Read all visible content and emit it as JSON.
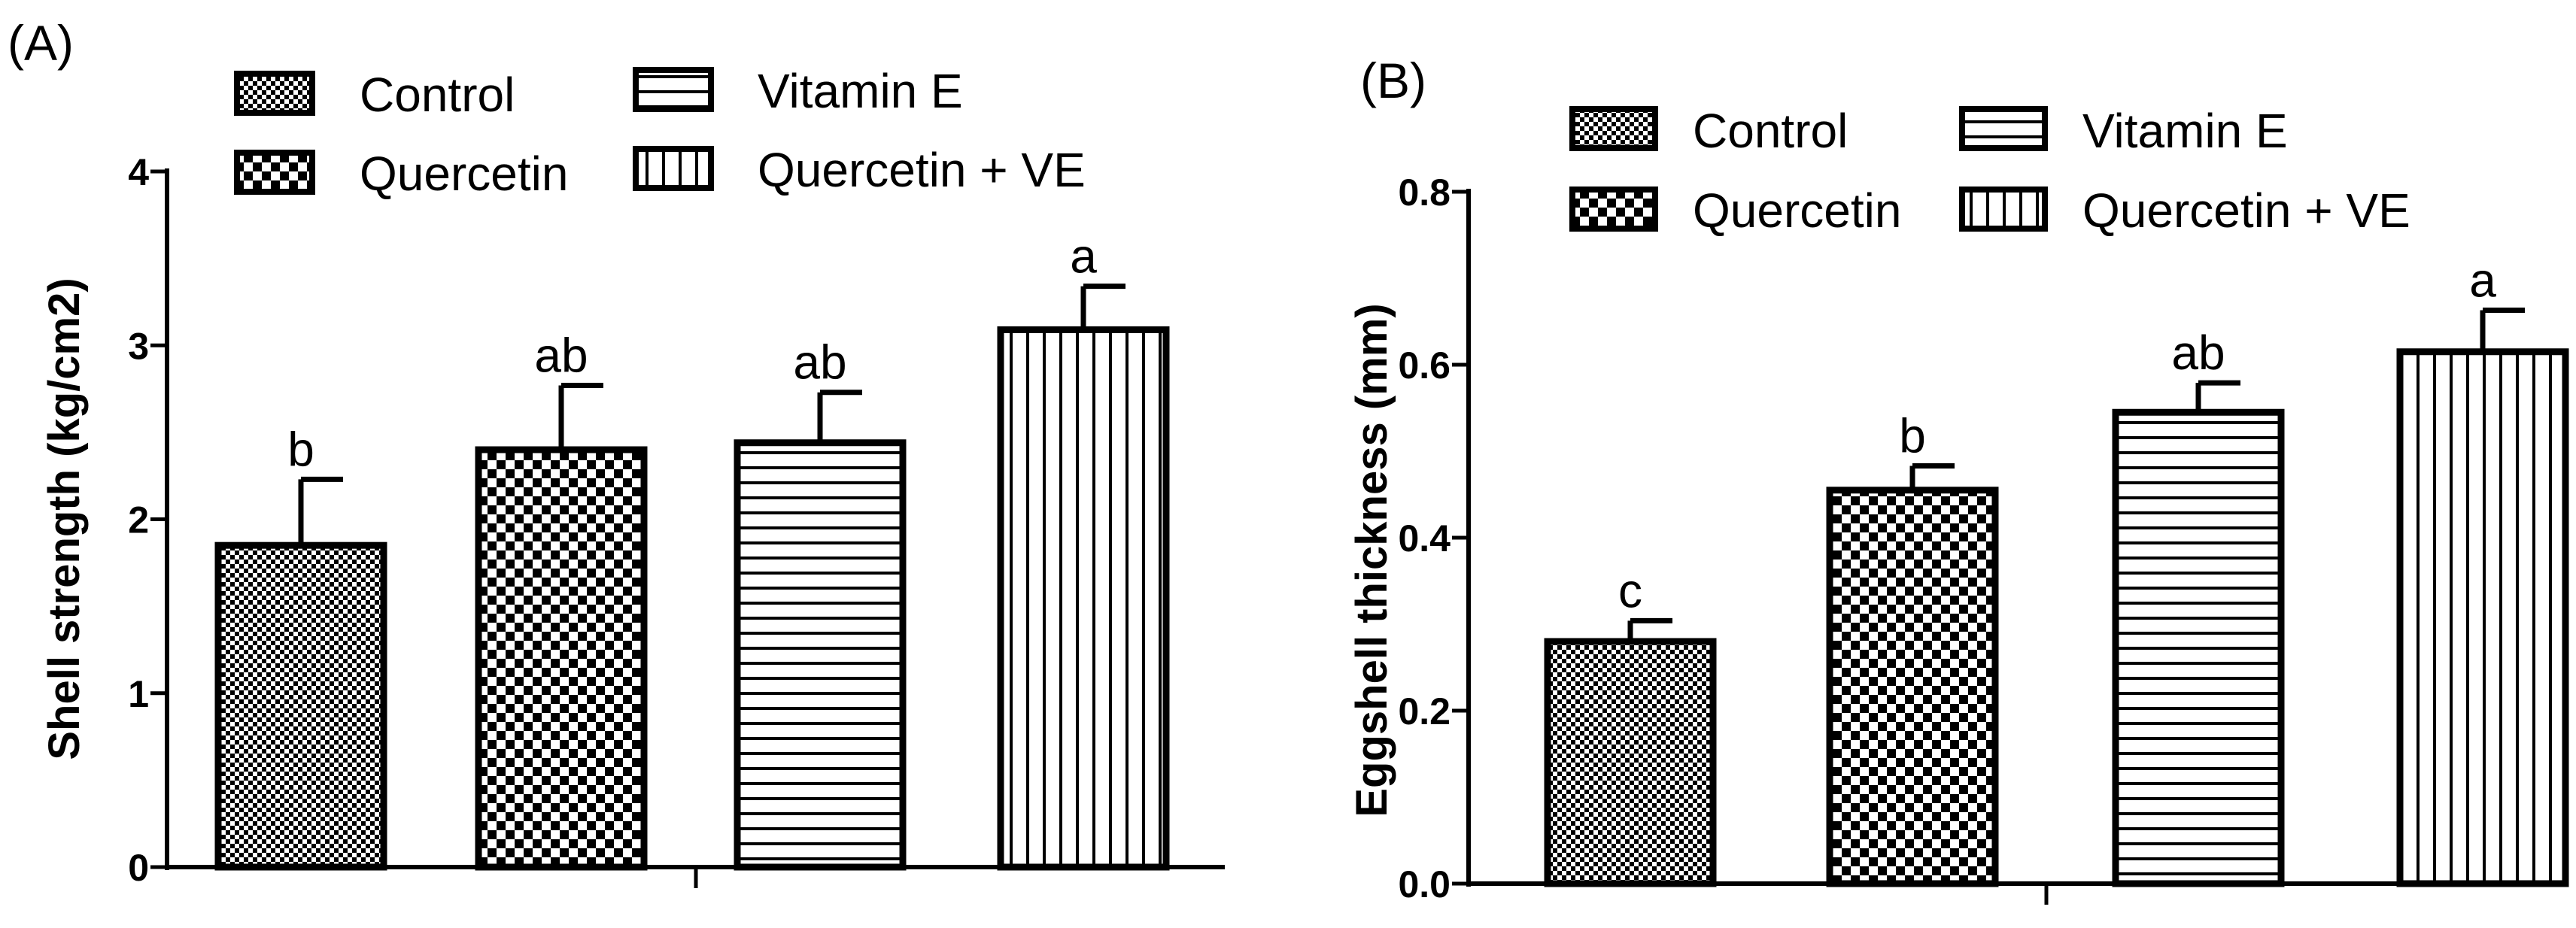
{
  "chart_data": [
    {
      "panel_label": "(A)",
      "type": "bar",
      "categories": [
        "Control",
        "Quercetin",
        "Vitamin E",
        "Quercetin + VE"
      ],
      "values": [
        1.85,
        2.4,
        2.44,
        3.09
      ],
      "errors": [
        0.38,
        0.37,
        0.29,
        0.25
      ],
      "significance": [
        "b",
        "ab",
        "ab",
        "a"
      ],
      "patterns": [
        "fine-check",
        "coarse-check",
        "horizontal-lines",
        "vertical-lines"
      ],
      "ylabel": "Shell strength (kg/cm2)",
      "xlabel": "",
      "ylim": [
        0,
        4
      ],
      "yticks": [
        0,
        1,
        2,
        3,
        4
      ],
      "ytick_labels": [
        "0",
        "1",
        "2",
        "3",
        "4"
      ],
      "legend": [
        "Control",
        "Quercetin",
        "Vitamin E",
        "Quercetin + VE"
      ],
      "legend_position": "top"
    },
    {
      "panel_label": "(B)",
      "type": "bar",
      "categories": [
        "Control",
        "Quercetin",
        "Vitamin E",
        "Quercetin + VE"
      ],
      "values": [
        0.28,
        0.455,
        0.545,
        0.615
      ],
      "errors": [
        0.024,
        0.028,
        0.034,
        0.048
      ],
      "significance": [
        "c",
        "b",
        "ab",
        "a"
      ],
      "patterns": [
        "fine-check",
        "coarse-check",
        "horizontal-lines",
        "vertical-lines"
      ],
      "ylabel": "Eggshell thickness (mm)",
      "xlabel": "",
      "ylim": [
        0,
        0.8
      ],
      "yticks": [
        0,
        0.2,
        0.4,
        0.6,
        0.8
      ],
      "ytick_labels": [
        "0.0",
        "0.2",
        "0.4",
        "0.6",
        "0.8"
      ],
      "legend": [
        "Control",
        "Quercetin",
        "Vitamin E",
        "Quercetin + VE"
      ],
      "legend_position": "top"
    }
  ]
}
